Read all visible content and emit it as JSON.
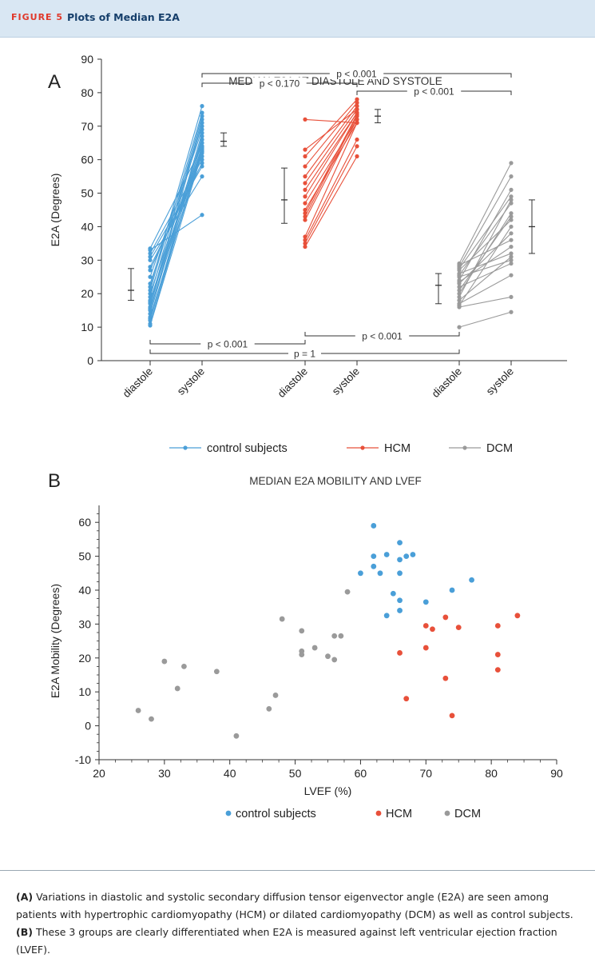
{
  "figure": {
    "label": "FIGURE 5",
    "title": "Plots of Median E2A"
  },
  "caption": {
    "a_label": "(A)",
    "a_text": " Variations in diastolic and systolic secondary diffusion tensor eigenvector angle (E2A) are seen among patients with hypertrophic cardiomyopathy (HCM) or dilated cardiomyopathy (DCM) as well as control subjects. ",
    "b_label": "(B)",
    "b_text": " These 3 groups are clearly differentiated when E2A is measured against left ventricular ejection fraction (LVEF)."
  },
  "chart_data": [
    {
      "panel": "A",
      "type": "line",
      "title": "MEDIAN E2A AT DIASTOLE AND SYSTOLE",
      "xlabel": "",
      "ylabel": "E2A (Degrees)",
      "ylim": [
        0,
        90
      ],
      "yticks": [
        0,
        10,
        20,
        30,
        40,
        50,
        60,
        70,
        80,
        90
      ],
      "categories": [
        "diastole",
        "systole",
        "diastole",
        "systole",
        "diastole",
        "systole"
      ],
      "legend_position": "bottom",
      "series": [
        {
          "name": "control subjects",
          "color": "#4a9fd8",
          "pairs": [
            [
              10.5,
              62
            ],
            [
              11,
              64
            ],
            [
              12,
              66
            ],
            [
              12.5,
              62.5
            ],
            [
              13,
              63
            ],
            [
              14,
              67
            ],
            [
              15,
              68
            ],
            [
              15.5,
              63.5
            ],
            [
              16,
              71
            ],
            [
              17,
              72
            ],
            [
              17.5,
              64
            ],
            [
              18,
              65
            ],
            [
              19,
              73
            ],
            [
              20,
              66
            ],
            [
              21,
              74
            ],
            [
              22,
              76
            ],
            [
              23,
              69
            ],
            [
              25,
              70
            ],
            [
              27,
              61
            ],
            [
              28,
              59
            ],
            [
              30,
              55
            ],
            [
              31,
              58
            ],
            [
              32,
              60
            ],
            [
              33,
              43.5
            ],
            [
              33.5,
              64
            ]
          ],
          "summary_median": 65.5,
          "summary_range": [
            64,
            68
          ]
        },
        {
          "name": "HCM",
          "color": "#e8503a",
          "pairs": [
            [
              34,
              61
            ],
            [
              35,
              64
            ],
            [
              36,
              66
            ],
            [
              37,
              71
            ],
            [
              42,
              72
            ],
            [
              43,
              73
            ],
            [
              44,
              73.5
            ],
            [
              45,
              71
            ],
            [
              47,
              72
            ],
            [
              49,
              74
            ],
            [
              51,
              74
            ],
            [
              53,
              75
            ],
            [
              55,
              76
            ],
            [
              58,
              77
            ],
            [
              61,
              78
            ],
            [
              63,
              75
            ],
            [
              72,
              71
            ]
          ],
          "summary_median": 73,
          "summary_range": [
            71,
            75
          ]
        },
        {
          "name": "DCM",
          "color": "#9a9a9a",
          "pairs": [
            [
              10,
              14.5
            ],
            [
              16,
              19
            ],
            [
              17,
              25.5
            ],
            [
              18,
              31
            ],
            [
              19,
              48
            ],
            [
              21,
              43
            ],
            [
              22,
              29
            ],
            [
              23,
              38
            ],
            [
              24,
              51
            ],
            [
              25,
              30
            ],
            [
              26,
              32
            ],
            [
              27,
              42
            ],
            [
              28,
              55
            ],
            [
              28.5,
              36
            ],
            [
              16.5,
              40
            ],
            [
              20,
              44
            ],
            [
              25.5,
              47
            ],
            [
              27.5,
              49
            ],
            [
              29,
              59
            ],
            [
              23.5,
              34
            ]
          ],
          "diastole_summary_median": 22.5,
          "diastole_summary_range": [
            17,
            26
          ],
          "systole_summary_median": 40,
          "systole_summary_range": [
            32,
            48
          ]
        }
      ],
      "control_diastole_summary": {
        "median": 21,
        "range": [
          18,
          27.5
        ]
      },
      "hcm_diastole_summary": {
        "median": 48,
        "range": [
          41,
          57.5
        ]
      },
      "annotations": [
        {
          "text": "p < 0.001",
          "group": "top-long"
        },
        {
          "text": "p < 0.170",
          "group": "top-short"
        },
        {
          "text": "p < 0.001",
          "group": "top-right"
        },
        {
          "text": "p < 0.001",
          "group": "bottom-left"
        },
        {
          "text": "p < 0.001",
          "group": "bottom-right"
        },
        {
          "text": "p = 1",
          "group": "bottom-long"
        }
      ]
    },
    {
      "panel": "B",
      "type": "scatter",
      "title": "MEDIAN E2A MOBILITY AND LVEF",
      "xlabel": "LVEF (%)",
      "ylabel": "E2A Mobility (Degrees)",
      "xlim": [
        20,
        90
      ],
      "ylim": [
        -10,
        65
      ],
      "xticks": [
        20,
        30,
        40,
        50,
        60,
        70,
        80,
        90
      ],
      "yticks": [
        -10,
        0,
        10,
        20,
        30,
        40,
        50,
        60
      ],
      "legend_position": "bottom",
      "series": [
        {
          "name": "control subjects",
          "color": "#4a9fd8",
          "points": [
            [
              62,
              59
            ],
            [
              62,
              50
            ],
            [
              62,
              47
            ],
            [
              60,
              45
            ],
            [
              63,
              45
            ],
            [
              64,
              50.5
            ],
            [
              66,
              54
            ],
            [
              66,
              49
            ],
            [
              66,
              45
            ],
            [
              67,
              50
            ],
            [
              68,
              50.5
            ],
            [
              65,
              39
            ],
            [
              64,
              32.5
            ],
            [
              66,
              37
            ],
            [
              66,
              34
            ],
            [
              70,
              36.5
            ],
            [
              74,
              40
            ],
            [
              77,
              43
            ]
          ]
        },
        {
          "name": "HCM",
          "color": "#e8503a",
          "points": [
            [
              66,
              21.5
            ],
            [
              67,
              8
            ],
            [
              70,
              29.5
            ],
            [
              70,
              23
            ],
            [
              71,
              28.5
            ],
            [
              73,
              32
            ],
            [
              73,
              14
            ],
            [
              74,
              3
            ],
            [
              75,
              29
            ],
            [
              81,
              29.5
            ],
            [
              81,
              21
            ],
            [
              81,
              16.5
            ],
            [
              84,
              32.5
            ]
          ]
        },
        {
          "name": "DCM",
          "color": "#9a9a9a",
          "points": [
            [
              26,
              4.5
            ],
            [
              28,
              2
            ],
            [
              30,
              19
            ],
            [
              32,
              11
            ],
            [
              33,
              17.5
            ],
            [
              38,
              16
            ],
            [
              41,
              -3
            ],
            [
              46,
              5
            ],
            [
              47,
              9
            ],
            [
              48,
              31.5
            ],
            [
              51,
              28
            ],
            [
              51,
              22
            ],
            [
              51,
              21
            ],
            [
              53,
              23
            ],
            [
              55,
              20.5
            ],
            [
              56,
              26.5
            ],
            [
              56,
              19.5
            ],
            [
              57,
              26.5
            ],
            [
              58,
              39.5
            ]
          ]
        }
      ]
    }
  ]
}
